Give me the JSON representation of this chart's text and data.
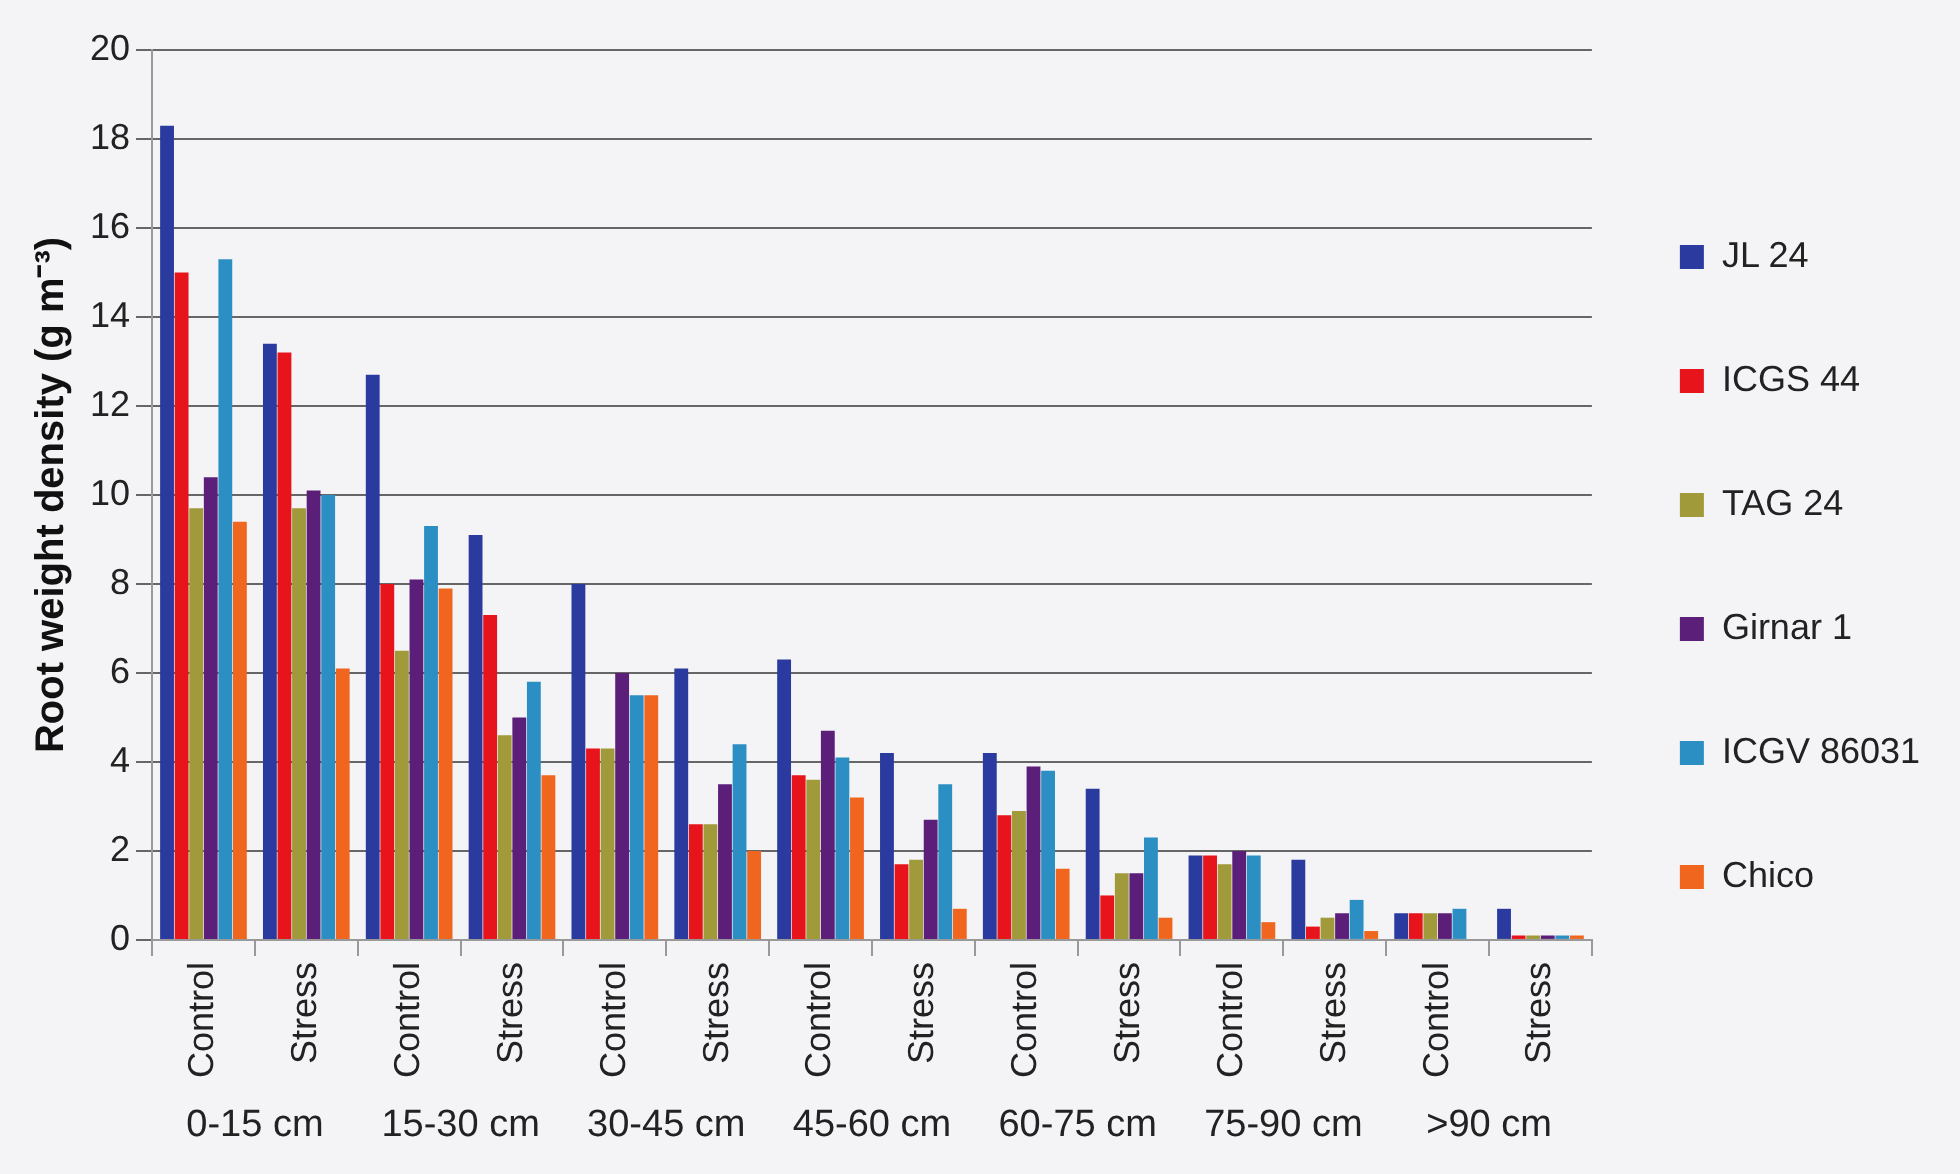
{
  "chart_data": {
    "type": "bar",
    "ylabel": "Root weight density (g m⁻³)",
    "categories": [
      "Control",
      "Stress",
      "Control",
      "Stress",
      "Control",
      "Stress",
      "Control",
      "Stress",
      "Control",
      "Stress",
      "Control",
      "Stress",
      "Control",
      "Stress"
    ],
    "annotations": [
      "0-15 cm",
      "15-30 cm",
      "30-45 cm",
      "45-60 cm",
      "60-75 cm",
      "75-90 cm",
      ">90 cm"
    ],
    "ylim": [
      0,
      20
    ],
    "yticks": [
      0,
      2,
      4,
      6,
      8,
      10,
      12,
      14,
      16,
      18,
      20
    ],
    "grid": "y",
    "legend": "right",
    "series": [
      {
        "name": "JL 24",
        "color": "#2b3a9e",
        "values": [
          18.3,
          13.4,
          12.7,
          9.1,
          8.0,
          6.1,
          6.3,
          4.2,
          4.2,
          3.4,
          1.9,
          1.8,
          0.6,
          0.7
        ]
      },
      {
        "name": "ICGS 44",
        "color": "#e8141c",
        "values": [
          15.0,
          13.2,
          8.0,
          7.3,
          4.3,
          2.6,
          3.7,
          1.7,
          2.8,
          1.0,
          1.9,
          0.3,
          0.6,
          0.1
        ]
      },
      {
        "name": "TAG 24",
        "color": "#a09a3a",
        "values": [
          9.7,
          9.7,
          6.5,
          4.6,
          4.3,
          2.6,
          3.6,
          1.8,
          2.9,
          1.5,
          1.7,
          0.5,
          0.6,
          0.1
        ]
      },
      {
        "name": "Girnar 1",
        "color": "#5b1f7a",
        "values": [
          10.4,
          10.1,
          8.1,
          5.0,
          6.0,
          3.5,
          4.7,
          2.7,
          3.9,
          1.5,
          2.0,
          0.6,
          0.6,
          0.1
        ]
      },
      {
        "name": "ICGV 86031",
        "color": "#2c8fc4",
        "values": [
          15.3,
          10.0,
          9.3,
          5.8,
          5.5,
          4.4,
          4.1,
          3.5,
          3.8,
          2.3,
          1.9,
          0.9,
          0.7,
          0.1
        ]
      },
      {
        "name": "Chico",
        "color": "#f0661e",
        "values": [
          9.4,
          6.1,
          7.9,
          3.7,
          5.5,
          2.0,
          3.2,
          0.7,
          1.6,
          0.5,
          0.4,
          0.2,
          0.0,
          0.1
        ]
      }
    ]
  }
}
